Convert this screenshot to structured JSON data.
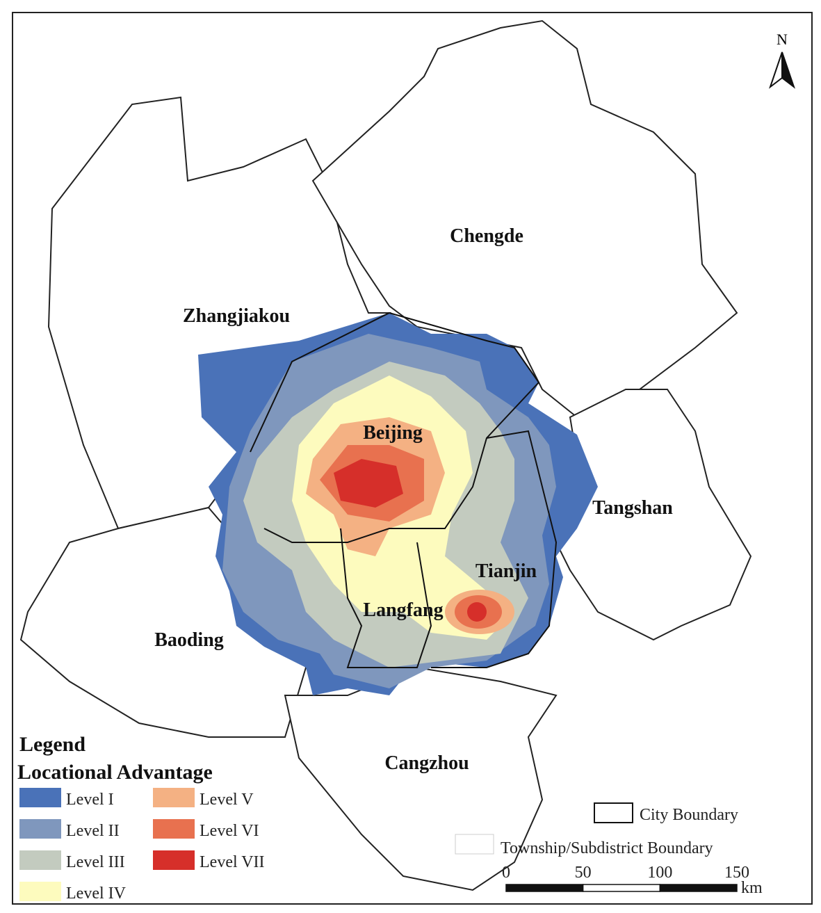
{
  "north_arrow": "N",
  "city_labels": [
    "Chengde",
    "Zhangjiakou",
    "Beijing",
    "Tangshan",
    "Tianjin",
    "Langfang",
    "Baoding",
    "Cangzhou"
  ],
  "legend": {
    "title": "Legend",
    "subtitle": "Locational Advantage",
    "items": [
      {
        "label": "Level I",
        "color": "#4a72b8"
      },
      {
        "label": "Level II",
        "color": "#7f97bd"
      },
      {
        "label": "Level III",
        "color": "#c3cbbf"
      },
      {
        "label": "Level IV",
        "color": "#fdfbbe"
      },
      {
        "label": "Level V",
        "color": "#f4b183"
      },
      {
        "label": "Level VI",
        "color": "#e8714f"
      },
      {
        "label": "Level VII",
        "color": "#d62f2a"
      }
    ]
  },
  "boundary_legend": {
    "city": "City  Boundary",
    "township": "Township/Subdistrict Boundary"
  },
  "scale_bar": {
    "ticks": [
      0,
      50,
      100,
      150
    ],
    "unit": "km"
  }
}
